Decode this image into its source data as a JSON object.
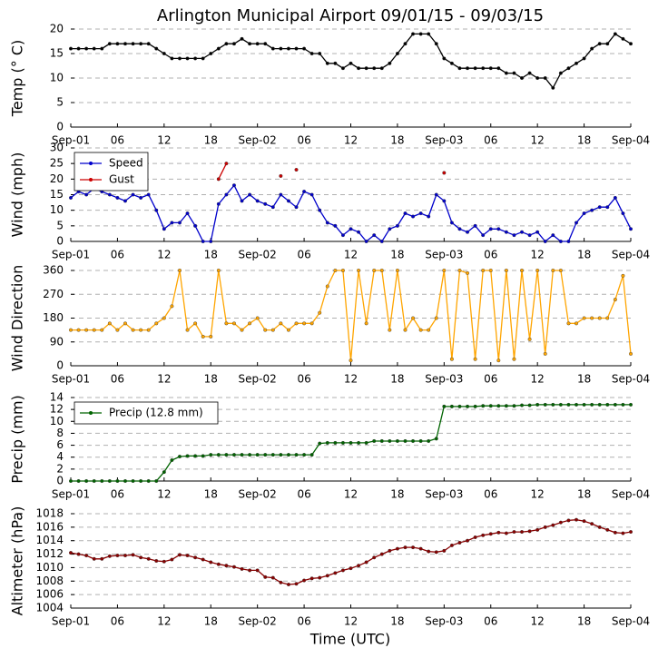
{
  "chart_data": [
    {
      "type": "line",
      "title": "Arlington Municipal Airport 09/01/15 - 09/03/15",
      "ylabel": "Temp (° C)",
      "x": [
        0,
        1,
        2,
        3,
        4,
        5,
        6,
        7,
        8,
        9,
        10,
        11,
        12,
        13,
        14,
        15,
        16,
        17,
        18,
        19,
        20,
        21,
        22,
        23,
        24,
        25,
        26,
        27,
        28,
        29,
        30,
        31,
        32,
        33,
        34,
        35,
        36,
        37,
        38,
        39,
        40,
        41,
        42,
        43,
        44,
        45,
        46,
        47,
        48,
        49,
        50,
        51,
        52,
        53,
        54,
        55,
        56,
        57,
        58,
        59,
        60,
        61,
        62,
        63,
        64,
        65,
        66,
        67,
        68,
        69,
        70,
        71,
        72
      ],
      "xlim": [
        0,
        72
      ],
      "xticks": [
        {
          "value": 0,
          "label": "Sep-01"
        },
        {
          "value": 6,
          "label": "06"
        },
        {
          "value": 12,
          "label": "12"
        },
        {
          "value": 18,
          "label": "18"
        },
        {
          "value": 24,
          "label": "Sep-02"
        },
        {
          "value": 30,
          "label": "06"
        },
        {
          "value": 36,
          "label": "12"
        },
        {
          "value": 42,
          "label": "18"
        },
        {
          "value": 48,
          "label": "Sep-03"
        },
        {
          "value": 54,
          "label": "06"
        },
        {
          "value": 60,
          "label": "12"
        },
        {
          "value": 66,
          "label": "18"
        },
        {
          "value": 72,
          "label": "Sep-04"
        }
      ],
      "ylim": [
        0,
        20
      ],
      "yticks": [
        0,
        5,
        10,
        15,
        20
      ],
      "grid": true,
      "series": [
        {
          "color": "#000000",
          "values": [
            16,
            16,
            16,
            16,
            16,
            17,
            17,
            17,
            17,
            17,
            17,
            16,
            15,
            14,
            14,
            14,
            14,
            14,
            15,
            16,
            17,
            17,
            18,
            17,
            17,
            17,
            16,
            16,
            16,
            16,
            16,
            15,
            15,
            13,
            13,
            12,
            13,
            12,
            12,
            12,
            12,
            13,
            15,
            17,
            19,
            19,
            19,
            17,
            14,
            13,
            12,
            12,
            12,
            12,
            12,
            12,
            11,
            11,
            10,
            11,
            10,
            10,
            8,
            11,
            12,
            13,
            14,
            16,
            17,
            17,
            19,
            18,
            17
          ]
        }
      ]
    },
    {
      "type": "line",
      "ylabel": "Wind (mph)",
      "legend": "upper left",
      "x": [
        0,
        1,
        2,
        3,
        4,
        5,
        6,
        7,
        8,
        9,
        10,
        11,
        12,
        13,
        14,
        15,
        16,
        17,
        18,
        19,
        20,
        21,
        22,
        23,
        24,
        25,
        26,
        27,
        28,
        29,
        30,
        31,
        32,
        33,
        34,
        35,
        36,
        37,
        38,
        39,
        40,
        41,
        42,
        43,
        44,
        45,
        46,
        47,
        48,
        49,
        50,
        51,
        52,
        53,
        54,
        55,
        56,
        57,
        58,
        59,
        60,
        61,
        62,
        63,
        64,
        65,
        66,
        67,
        68,
        69,
        70,
        71,
        72
      ],
      "xlim": [
        0,
        72
      ],
      "xticks": [
        {
          "value": 0,
          "label": "Sep-01"
        },
        {
          "value": 6,
          "label": "06"
        },
        {
          "value": 12,
          "label": "12"
        },
        {
          "value": 18,
          "label": "18"
        },
        {
          "value": 24,
          "label": "Sep-02"
        },
        {
          "value": 30,
          "label": "06"
        },
        {
          "value": 36,
          "label": "12"
        },
        {
          "value": 42,
          "label": "18"
        },
        {
          "value": 48,
          "label": "Sep-03"
        },
        {
          "value": 54,
          "label": "06"
        },
        {
          "value": 60,
          "label": "12"
        },
        {
          "value": 66,
          "label": "18"
        },
        {
          "value": 72,
          "label": "Sep-04"
        }
      ],
      "ylim": [
        0,
        30
      ],
      "yticks": [
        0,
        5,
        10,
        15,
        20,
        25,
        30
      ],
      "grid": true,
      "series": [
        {
          "name": "Speed",
          "color": "#0000cc",
          "values": [
            14,
            16,
            15,
            17,
            16,
            15,
            14,
            13,
            15,
            14,
            15,
            10,
            4,
            6,
            6,
            9,
            5,
            0,
            0,
            12,
            15,
            18,
            13,
            15,
            13,
            12,
            11,
            15,
            13,
            11,
            16,
            15,
            10,
            6,
            5,
            2,
            4,
            3,
            0,
            2,
            0,
            4,
            5,
            9,
            8,
            9,
            8,
            15,
            13,
            6,
            4,
            3,
            5,
            2,
            4,
            4,
            3,
            2,
            3,
            2,
            3,
            0,
            2,
            0,
            0,
            6,
            9,
            10,
            11,
            11,
            14,
            9,
            4
          ]
        },
        {
          "name": "Gust",
          "color": "#cc0000",
          "values": [
            null,
            null,
            null,
            null,
            null,
            null,
            null,
            null,
            null,
            null,
            null,
            null,
            null,
            null,
            null,
            null,
            null,
            null,
            null,
            20,
            25,
            null,
            null,
            null,
            null,
            null,
            null,
            21,
            null,
            23,
            null,
            null,
            null,
            null,
            null,
            null,
            null,
            null,
            null,
            null,
            null,
            null,
            null,
            null,
            null,
            null,
            null,
            null,
            22,
            null,
            null,
            null,
            null,
            null,
            null,
            null,
            null,
            null,
            null,
            null,
            null,
            null,
            null,
            null,
            null,
            null,
            null,
            null,
            null,
            null,
            null,
            null,
            null
          ]
        }
      ]
    },
    {
      "type": "line",
      "ylabel": "Wind Direction",
      "x": [
        0,
        1,
        2,
        3,
        4,
        5,
        6,
        7,
        8,
        9,
        10,
        11,
        12,
        13,
        14,
        15,
        16,
        17,
        18,
        19,
        20,
        21,
        22,
        23,
        24,
        25,
        26,
        27,
        28,
        29,
        30,
        31,
        32,
        33,
        34,
        35,
        36,
        37,
        38,
        39,
        40,
        41,
        42,
        43,
        44,
        45,
        46,
        47,
        48,
        49,
        50,
        51,
        52,
        53,
        54,
        55,
        56,
        57,
        58,
        59,
        60,
        61,
        62,
        63,
        64,
        65,
        66,
        67,
        68,
        69,
        70,
        71,
        72
      ],
      "xlim": [
        0,
        72
      ],
      "xticks": [
        {
          "value": 0,
          "label": "Sep-01"
        },
        {
          "value": 6,
          "label": "06"
        },
        {
          "value": 12,
          "label": "12"
        },
        {
          "value": 18,
          "label": "18"
        },
        {
          "value": 24,
          "label": "Sep-02"
        },
        {
          "value": 30,
          "label": "06"
        },
        {
          "value": 36,
          "label": "12"
        },
        {
          "value": 42,
          "label": "18"
        },
        {
          "value": 48,
          "label": "Sep-03"
        },
        {
          "value": 54,
          "label": "06"
        },
        {
          "value": 60,
          "label": "12"
        },
        {
          "value": 66,
          "label": "18"
        },
        {
          "value": 72,
          "label": "Sep-04"
        }
      ],
      "ylim": [
        0,
        360
      ],
      "yticks": [
        0,
        90,
        180,
        270,
        360
      ],
      "grid": true,
      "series": [
        {
          "color": "#ffa500",
          "values": [
            135,
            135,
            135,
            135,
            135,
            160,
            135,
            160,
            135,
            135,
            135,
            160,
            180,
            225,
            360,
            135,
            160,
            110,
            110,
            360,
            160,
            160,
            135,
            160,
            180,
            135,
            135,
            160,
            135,
            160,
            160,
            160,
            200,
            300,
            360,
            360,
            20,
            360,
            160,
            360,
            360,
            135,
            360,
            135,
            180,
            135,
            135,
            180,
            360,
            25,
            360,
            350,
            25,
            360,
            360,
            20,
            360,
            25,
            360,
            100,
            360,
            45,
            360,
            360,
            160,
            160,
            180,
            180,
            180,
            180,
            250,
            340,
            45
          ]
        }
      ]
    },
    {
      "type": "line",
      "ylabel": "Precip (mm)",
      "legend": "upper left",
      "x": [
        0,
        1,
        2,
        3,
        4,
        5,
        6,
        7,
        8,
        9,
        10,
        11,
        12,
        13,
        14,
        15,
        16,
        17,
        18,
        19,
        20,
        21,
        22,
        23,
        24,
        25,
        26,
        27,
        28,
        29,
        30,
        31,
        32,
        33,
        34,
        35,
        36,
        37,
        38,
        39,
        40,
        41,
        42,
        43,
        44,
        45,
        46,
        47,
        48,
        49,
        50,
        51,
        52,
        53,
        54,
        55,
        56,
        57,
        58,
        59,
        60,
        61,
        62,
        63,
        64,
        65,
        66,
        67,
        68,
        69,
        70,
        71,
        72
      ],
      "xlim": [
        0,
        72
      ],
      "xticks": [
        {
          "value": 0,
          "label": "Sep-01"
        },
        {
          "value": 6,
          "label": "06"
        },
        {
          "value": 12,
          "label": "12"
        },
        {
          "value": 18,
          "label": "18"
        },
        {
          "value": 24,
          "label": "Sep-02"
        },
        {
          "value": 30,
          "label": "06"
        },
        {
          "value": 36,
          "label": "12"
        },
        {
          "value": 42,
          "label": "18"
        },
        {
          "value": 48,
          "label": "Sep-03"
        },
        {
          "value": 54,
          "label": "06"
        },
        {
          "value": 60,
          "label": "12"
        },
        {
          "value": 66,
          "label": "18"
        },
        {
          "value": 72,
          "label": "Sep-04"
        }
      ],
      "ylim": [
        0,
        14
      ],
      "yticks": [
        0,
        2,
        4,
        6,
        8,
        10,
        12,
        14
      ],
      "grid": true,
      "series": [
        {
          "name": "Precip (12.8 mm)",
          "color": "#006400",
          "values": [
            0,
            0,
            0,
            0,
            0,
            0,
            0,
            0,
            0,
            0,
            0,
            0,
            1.5,
            3.5,
            4.1,
            4.2,
            4.2,
            4.2,
            4.4,
            4.4,
            4.4,
            4.4,
            4.4,
            4.4,
            4.4,
            4.4,
            4.4,
            4.4,
            4.4,
            4.4,
            4.4,
            4.4,
            6.3,
            6.4,
            6.4,
            6.4,
            6.4,
            6.4,
            6.4,
            6.7,
            6.7,
            6.7,
            6.7,
            6.7,
            6.7,
            6.7,
            6.7,
            7.1,
            12.5,
            12.5,
            12.5,
            12.5,
            12.5,
            12.6,
            12.6,
            12.6,
            12.6,
            12.6,
            12.7,
            12.7,
            12.8,
            12.8,
            12.8,
            12.8,
            12.8,
            12.8,
            12.8,
            12.8,
            12.8,
            12.8,
            12.8,
            12.8,
            12.8
          ]
        }
      ]
    },
    {
      "type": "line",
      "ylabel": "Altimeter (hPa)",
      "xlabel": "Time (UTC)",
      "x": [
        0,
        1,
        2,
        3,
        4,
        5,
        6,
        7,
        8,
        9,
        10,
        11,
        12,
        13,
        14,
        15,
        16,
        17,
        18,
        19,
        20,
        21,
        22,
        23,
        24,
        25,
        26,
        27,
        28,
        29,
        30,
        31,
        32,
        33,
        34,
        35,
        36,
        37,
        38,
        39,
        40,
        41,
        42,
        43,
        44,
        45,
        46,
        47,
        48,
        49,
        50,
        51,
        52,
        53,
        54,
        55,
        56,
        57,
        58,
        59,
        60,
        61,
        62,
        63,
        64,
        65,
        66,
        67,
        68,
        69,
        70,
        71,
        72
      ],
      "xlim": [
        0,
        72
      ],
      "xticks": [
        {
          "value": 0,
          "label": "Sep-01"
        },
        {
          "value": 6,
          "label": "06"
        },
        {
          "value": 12,
          "label": "12"
        },
        {
          "value": 18,
          "label": "18"
        },
        {
          "value": 24,
          "label": "Sep-02"
        },
        {
          "value": 30,
          "label": "06"
        },
        {
          "value": 36,
          "label": "12"
        },
        {
          "value": 42,
          "label": "18"
        },
        {
          "value": 48,
          "label": "Sep-03"
        },
        {
          "value": 54,
          "label": "06"
        },
        {
          "value": 60,
          "label": "12"
        },
        {
          "value": 66,
          "label": "18"
        },
        {
          "value": 72,
          "label": "Sep-04"
        }
      ],
      "ylim": [
        1004,
        1018
      ],
      "yticks": [
        1004,
        1006,
        1008,
        1010,
        1012,
        1014,
        1016,
        1018
      ],
      "grid": true,
      "series": [
        {
          "color": "#8b0000",
          "values": [
            1012.2,
            1012,
            1011.8,
            1011.3,
            1011.3,
            1011.7,
            1011.8,
            1011.8,
            1011.9,
            1011.5,
            1011.3,
            1011,
            1010.9,
            1011.2,
            1011.9,
            1011.8,
            1011.5,
            1011.2,
            1010.8,
            1010.5,
            1010.3,
            1010.1,
            1009.8,
            1009.6,
            1009.6,
            1008.6,
            1008.5,
            1007.8,
            1007.5,
            1007.6,
            1008.1,
            1008.4,
            1008.5,
            1008.8,
            1009.2,
            1009.6,
            1009.9,
            1010.3,
            1010.8,
            1011.5,
            1012,
            1012.5,
            1012.8,
            1013,
            1013,
            1012.8,
            1012.4,
            1012.3,
            1012.5,
            1013.3,
            1013.7,
            1014,
            1014.5,
            1014.8,
            1015,
            1015.2,
            1015.1,
            1015.3,
            1015.3,
            1015.4,
            1015.6,
            1016,
            1016.3,
            1016.7,
            1017,
            1017.1,
            1016.9,
            1016.5,
            1016,
            1015.6,
            1015.2,
            1015.1,
            1015.3
          ]
        }
      ]
    }
  ]
}
